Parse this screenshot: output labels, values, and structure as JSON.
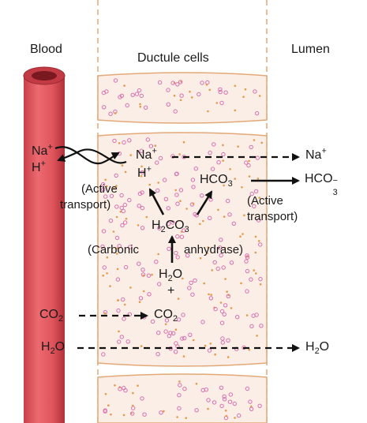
{
  "header": {
    "blood": "Blood",
    "ductule": "Ductule cells",
    "lumen": "Lumen"
  },
  "labels": {
    "na_blood": "Na",
    "h_blood": "H",
    "na_cell": "Na",
    "h_cell": "H",
    "na_lumen": "Na",
    "hco3_cell": "HCO",
    "hco3_lumen": "HCO",
    "active_transport_left_1": "(Active",
    "active_transport_left_2": "transport)",
    "active_transport_right_1": "(Active",
    "active_transport_right_2": "transport)",
    "h2co3": "H",
    "carbonic_1": "(Carbonic",
    "carbonic_2": "anhydrase)",
    "h2o_cell": "H",
    "plus": "+",
    "co2_cell": "CO",
    "co2_blood": "CO",
    "h2o_blood": "H",
    "h2o_lumen": "H"
  },
  "glyphs": {
    "plus_sup": "+",
    "minus_sup": "−",
    "two": "2",
    "three": "3",
    "o": "O",
    "co": "CO"
  },
  "colors": {
    "vessel": "#e0555c",
    "vessel_dark": "#b8343c",
    "cell_fill": "#fbeee6",
    "cell_border": "#e3a877",
    "dot_pink": "#d86fb0",
    "dot_orange": "#e49a4a"
  }
}
